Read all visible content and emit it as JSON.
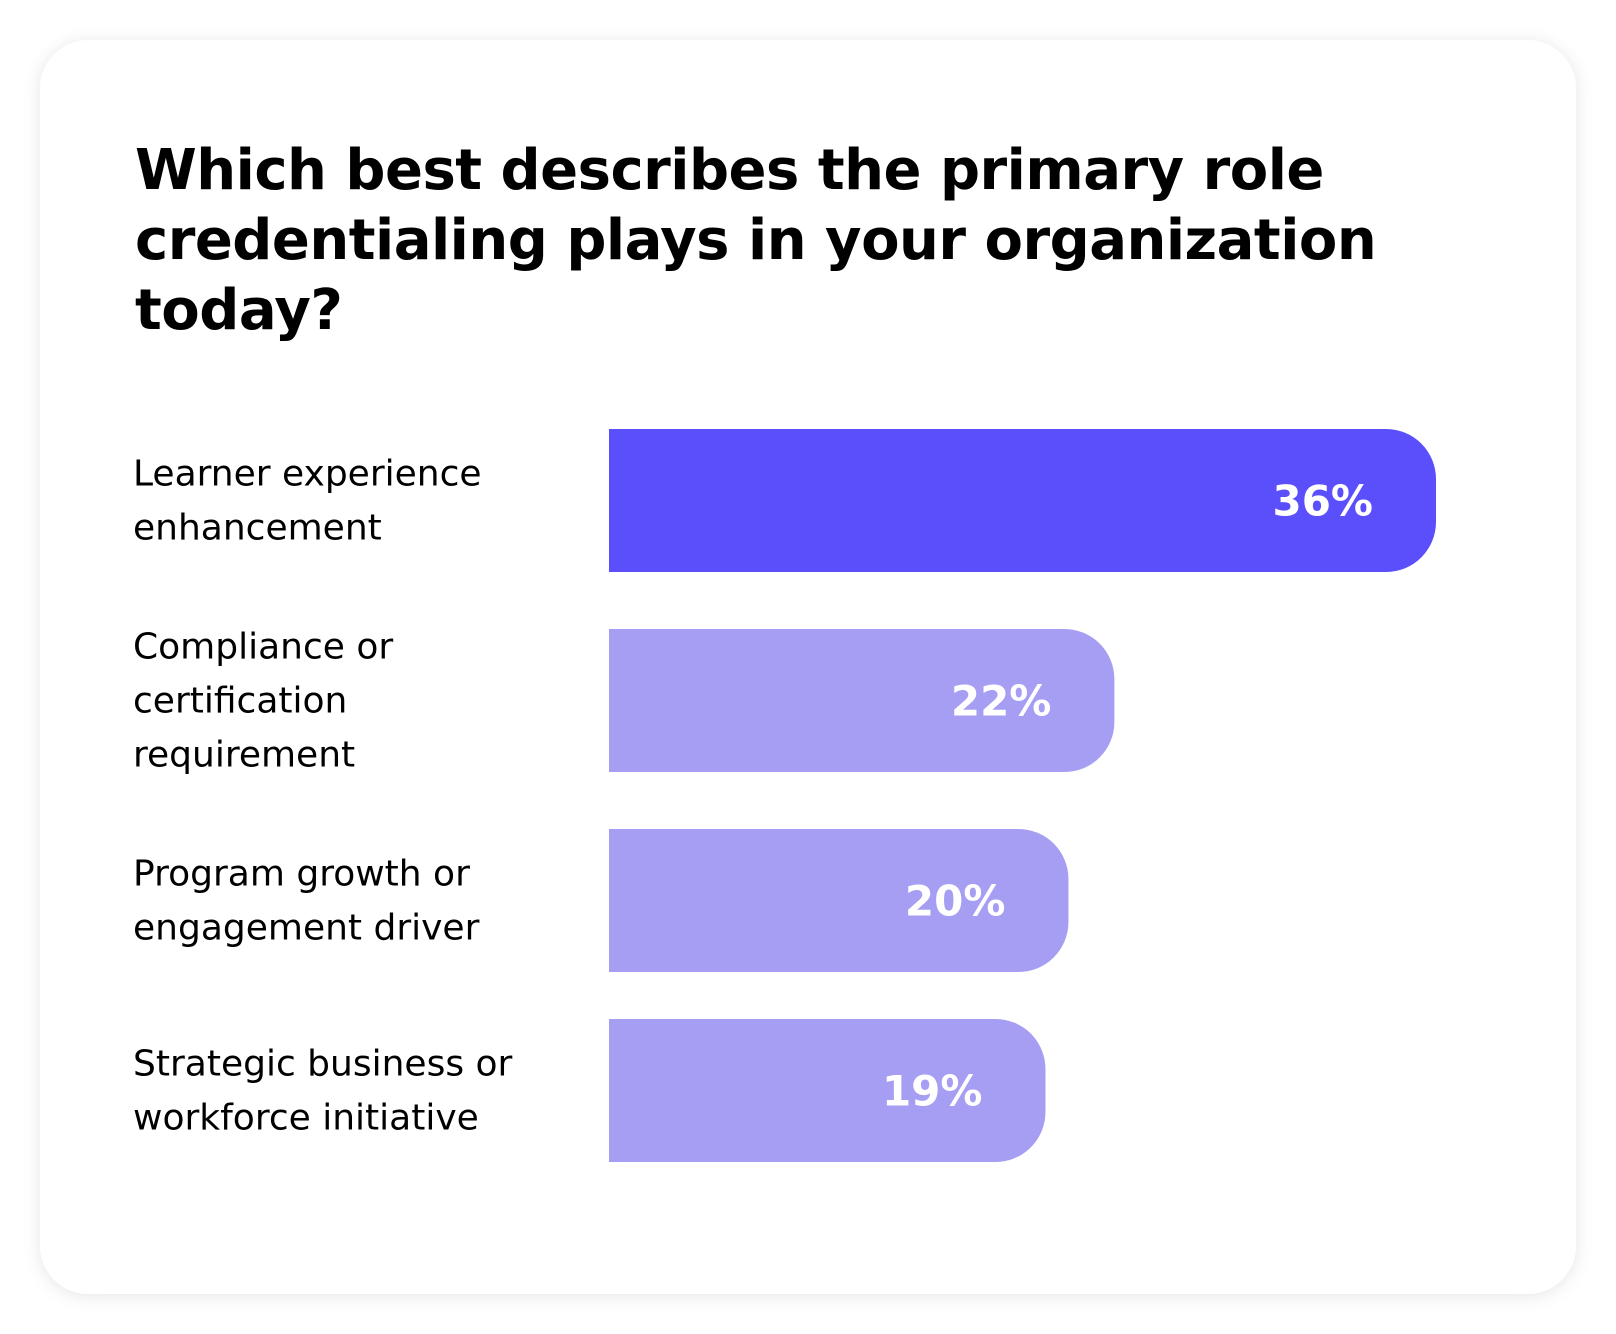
{
  "card": {
    "title": "Which best describes the primary role credentialing plays in your organization today?"
  },
  "chart_data": {
    "type": "bar",
    "orientation": "horizontal",
    "title": "Which best describes the primary role credentialing plays in your organization today?",
    "xlabel": "",
    "ylabel": "",
    "grid": false,
    "legend": "none",
    "unit": "%",
    "categories": [
      [
        "Learner experience",
        "enhancement"
      ],
      [
        "Compliance or",
        "certification",
        "requirement"
      ],
      [
        "Program growth or",
        "engagement driver"
      ],
      [
        "Strategic business or",
        "workforce initiative"
      ]
    ],
    "values": [
      36,
      22,
      20,
      19
    ],
    "value_labels": [
      "36%",
      "22%",
      "20%",
      "19%"
    ],
    "bar_colors": [
      "#5b4ffc",
      "#a59ef3",
      "#a59ef3",
      "#a59ef3"
    ],
    "xlim": [
      0,
      36
    ]
  }
}
